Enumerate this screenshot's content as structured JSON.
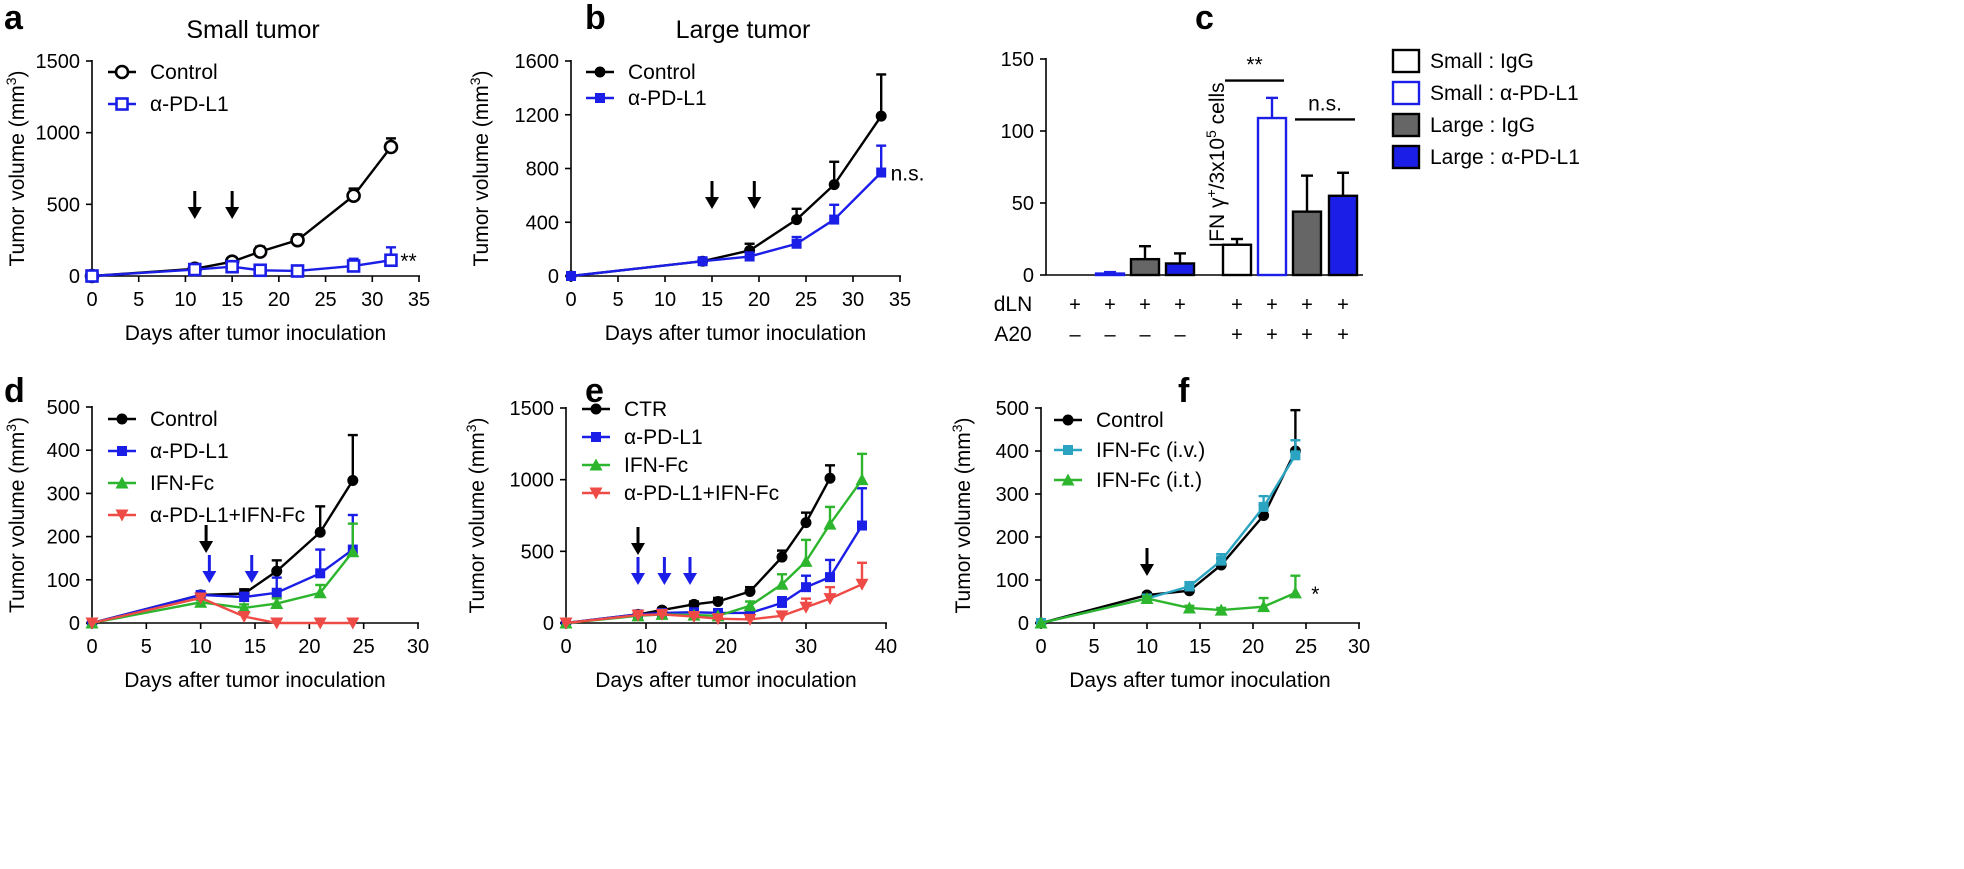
{
  "colors": {
    "black": "#000000",
    "blue": "#1b1ee6",
    "green": "#2db52d",
    "red": "#ef4b46",
    "teal": "#2aa4c0",
    "gray": "#666666"
  },
  "chart_data": [
    {
      "panel": "a",
      "type": "line",
      "title": "Small tumor",
      "xlabel": "Days after tumor inoculation",
      "ylabel": "Tumor volume (mm3)",
      "xlim": [
        0,
        35
      ],
      "ylim": [
        0,
        1500
      ],
      "xticks": [
        0,
        5,
        10,
        15,
        20,
        25,
        30,
        35
      ],
      "yticks": [
        0,
        500,
        1000,
        1500
      ],
      "arrows": [
        {
          "x": 11,
          "color": "black"
        },
        {
          "x": 15,
          "color": "black"
        }
      ],
      "annotation": {
        "text": "**",
        "x": 33,
        "y": 110
      },
      "legend": "top-left",
      "series": [
        {
          "name": "Control",
          "color": "black",
          "marker": "circle-open",
          "x": [
            0,
            11,
            15,
            18,
            22,
            28,
            32
          ],
          "y": [
            0,
            50,
            100,
            170,
            250,
            560,
            900
          ],
          "err": [
            0,
            15,
            20,
            35,
            40,
            50,
            60
          ]
        },
        {
          "name": "α-PD-L1",
          "color": "blue",
          "marker": "square-open",
          "x": [
            0,
            11,
            15,
            18,
            22,
            28,
            32
          ],
          "y": [
            0,
            45,
            65,
            40,
            35,
            70,
            110
          ],
          "err": [
            0,
            10,
            15,
            15,
            15,
            50,
            90
          ]
        }
      ]
    },
    {
      "panel": "b",
      "type": "line",
      "title": "Large tumor",
      "xlabel": "Days after tumor inoculation",
      "ylabel": "Tumor volume (mm3)",
      "xlim": [
        0,
        35
      ],
      "ylim": [
        0,
        1600
      ],
      "xticks": [
        0,
        5,
        10,
        15,
        20,
        25,
        30,
        35
      ],
      "yticks": [
        0,
        400,
        800,
        1200,
        1600
      ],
      "arrows": [
        {
          "x": 15,
          "color": "black"
        },
        {
          "x": 19.5,
          "color": "black"
        }
      ],
      "annotation": {
        "text": "n.s.",
        "x": 34,
        "y": 770
      },
      "legend": "top-left",
      "series": [
        {
          "name": "Control",
          "color": "black",
          "marker": "circle",
          "x": [
            0,
            14,
            19,
            24,
            28,
            33
          ],
          "y": [
            0,
            110,
            190,
            420,
            680,
            1190
          ],
          "err": [
            0,
            15,
            50,
            80,
            170,
            310
          ]
        },
        {
          "name": "α-PD-L1",
          "color": "blue",
          "marker": "square",
          "x": [
            0,
            14,
            19,
            24,
            28,
            33
          ],
          "y": [
            0,
            110,
            145,
            240,
            420,
            770
          ],
          "err": [
            0,
            15,
            30,
            50,
            110,
            200
          ]
        }
      ]
    },
    {
      "panel": "c",
      "type": "bar",
      "ylabel": "IFN γ+/3x105 cells",
      "ylim": [
        0,
        150
      ],
      "yticks": [
        0,
        50,
        100,
        150
      ],
      "row_labels": {
        "dLN": "dLN",
        "A20": "A20"
      },
      "bars": [
        {
          "group": "Small : IgG",
          "value": 0,
          "err": 0,
          "dLN": "+",
          "A20": "–"
        },
        {
          "group": "Small : α-PD-L1",
          "value": 1,
          "err": 1,
          "dLN": "+",
          "A20": "–"
        },
        {
          "group": "Large : IgG",
          "value": 11,
          "err": 9,
          "dLN": "+",
          "A20": "–"
        },
        {
          "group": "Large : α-PD-L1",
          "value": 8,
          "err": 7,
          "dLN": "+",
          "A20": "–"
        },
        {
          "group": "Small : IgG",
          "value": 21,
          "err": 4,
          "dLN": "+",
          "A20": "+"
        },
        {
          "group": "Small : α-PD-L1",
          "value": 109,
          "err": 14,
          "dLN": "+",
          "A20": "+"
        },
        {
          "group": "Large : IgG",
          "value": 44,
          "err": 25,
          "dLN": "+",
          "A20": "+"
        },
        {
          "group": "Large : α-PD-L1",
          "value": 55,
          "err": 16,
          "dLN": "+",
          "A20": "+"
        }
      ],
      "significance": [
        {
          "label": "**",
          "bars": [
            4,
            5
          ],
          "y": 135
        },
        {
          "label": "n.s.",
          "bars": [
            6,
            7
          ],
          "y": 108
        }
      ],
      "legend": [
        {
          "name": "Small : IgG",
          "fill": "#ffffff",
          "stroke": "black"
        },
        {
          "name": "Small : α-PD-L1",
          "fill": "#ffffff",
          "stroke": "blue"
        },
        {
          "name": "Large : IgG",
          "fill": "gray",
          "stroke": "black"
        },
        {
          "name": "Large : α-PD-L1",
          "fill": "blue",
          "stroke": "black"
        }
      ]
    },
    {
      "panel": "d",
      "type": "line",
      "xlabel": "Days after tumor inoculation",
      "ylabel": "Tumor volume (mm3)",
      "xlim": [
        0,
        30
      ],
      "ylim": [
        0,
        500
      ],
      "xticks": [
        0,
        5,
        10,
        15,
        20,
        25,
        30
      ],
      "yticks": [
        0,
        100,
        200,
        300,
        400,
        500
      ],
      "arrows": [
        {
          "x": 10.5,
          "color": "black"
        },
        {
          "x": 10.8,
          "color": "blue"
        },
        {
          "x": 14.7,
          "color": "blue"
        }
      ],
      "legend": "top-left",
      "series": [
        {
          "name": "Control",
          "color": "black",
          "marker": "circle",
          "x": [
            0,
            10,
            14,
            17,
            21,
            24
          ],
          "y": [
            0,
            65,
            68,
            120,
            210,
            330
          ],
          "err": [
            0,
            5,
            10,
            25,
            60,
            105
          ]
        },
        {
          "name": "α-PD-L1",
          "color": "blue",
          "marker": "square",
          "x": [
            0,
            10,
            14,
            17,
            21,
            24
          ],
          "y": [
            0,
            65,
            60,
            70,
            115,
            170
          ],
          "err": [
            0,
            5,
            10,
            35,
            55,
            80
          ]
        },
        {
          "name": "IFN-Fc",
          "color": "green",
          "marker": "triangle",
          "x": [
            0,
            10,
            14,
            17,
            21,
            24
          ],
          "y": [
            0,
            48,
            35,
            45,
            70,
            165
          ],
          "err": [
            0,
            5,
            8,
            12,
            18,
            65
          ]
        },
        {
          "name": "α-PD-L1+IFN-Fc",
          "color": "red",
          "marker": "triangle-down",
          "x": [
            0,
            10,
            14,
            17,
            21,
            24
          ],
          "y": [
            0,
            58,
            15,
            0,
            0,
            0
          ],
          "err": [
            0,
            5,
            5,
            0,
            0,
            0
          ]
        }
      ]
    },
    {
      "panel": "e",
      "type": "line",
      "xlabel": "Days after tumor inoculation",
      "ylabel": "Tumor volume (mm3)",
      "xlim": [
        0,
        40
      ],
      "ylim": [
        0,
        1500
      ],
      "xticks": [
        0,
        10,
        20,
        30,
        40
      ],
      "yticks": [
        0,
        500,
        1000,
        1500
      ],
      "arrows": [
        {
          "x": 9,
          "color": "black"
        },
        {
          "x": 9,
          "color": "blue"
        },
        {
          "x": 12.3,
          "color": "blue"
        },
        {
          "x": 15.5,
          "color": "blue"
        }
      ],
      "legend": "top-left",
      "series": [
        {
          "name": "CTR",
          "color": "black",
          "marker": "circle",
          "x": [
            0,
            9,
            12,
            16,
            19,
            23,
            27,
            30,
            33
          ],
          "y": [
            0,
            60,
            90,
            130,
            150,
            220,
            460,
            700,
            1010
          ],
          "err": [
            0,
            10,
            15,
            20,
            25,
            30,
            45,
            70,
            90
          ]
        },
        {
          "name": "α-PD-L1",
          "color": "blue",
          "marker": "square",
          "x": [
            0,
            9,
            12,
            16,
            19,
            23,
            27,
            30,
            33,
            37
          ],
          "y": [
            0,
            60,
            70,
            75,
            70,
            70,
            140,
            250,
            320,
            680
          ],
          "err": [
            0,
            10,
            15,
            15,
            15,
            20,
            40,
            80,
            120,
            260
          ]
        },
        {
          "name": "IFN-Fc",
          "color": "green",
          "marker": "triangle",
          "x": [
            0,
            9,
            12,
            16,
            19,
            23,
            27,
            30,
            33,
            37
          ],
          "y": [
            0,
            50,
            60,
            55,
            50,
            120,
            270,
            430,
            690,
            1000
          ],
          "err": [
            0,
            10,
            10,
            10,
            10,
            30,
            70,
            150,
            120,
            180
          ]
        },
        {
          "name": "α-PD-L1+IFN-Fc",
          "color": "red",
          "marker": "triangle-down",
          "x": [
            0,
            9,
            12,
            16,
            19,
            23,
            27,
            30,
            33,
            37
          ],
          "y": [
            0,
            55,
            60,
            45,
            30,
            25,
            50,
            110,
            170,
            270
          ],
          "err": [
            0,
            10,
            10,
            10,
            10,
            10,
            25,
            60,
            80,
            150
          ]
        }
      ]
    },
    {
      "panel": "f",
      "type": "line",
      "xlabel": "Days after tumor inoculation",
      "ylabel": "Tumor volume (mm3)",
      "xlim": [
        0,
        30
      ],
      "ylim": [
        0,
        500
      ],
      "xticks": [
        0,
        5,
        10,
        15,
        20,
        25,
        30
      ],
      "yticks": [
        0,
        100,
        200,
        300,
        400,
        500
      ],
      "arrows": [
        {
          "x": 10,
          "color": "black"
        }
      ],
      "annotation": {
        "text": "*",
        "x": 25.5,
        "y": 70
      },
      "legend": "top-left",
      "series": [
        {
          "name": "Control",
          "color": "black",
          "marker": "circle",
          "x": [
            0,
            10,
            14,
            17,
            21,
            24
          ],
          "y": [
            0,
            65,
            75,
            135,
            250,
            400
          ],
          "err": [
            0,
            5,
            10,
            15,
            25,
            95
          ]
        },
        {
          "name": "IFN-Fc (i.v.)",
          "color": "teal",
          "marker": "square",
          "x": [
            0,
            10,
            14,
            17,
            21,
            24
          ],
          "y": [
            0,
            57,
            85,
            145,
            270,
            390
          ],
          "err": [
            0,
            5,
            10,
            15,
            25,
            35
          ]
        },
        {
          "name": "IFN-Fc (i.t.)",
          "color": "green",
          "marker": "triangle",
          "x": [
            0,
            10,
            14,
            17,
            21,
            24
          ],
          "y": [
            0,
            57,
            35,
            30,
            38,
            70
          ],
          "err": [
            0,
            5,
            5,
            5,
            20,
            40
          ]
        }
      ]
    }
  ]
}
